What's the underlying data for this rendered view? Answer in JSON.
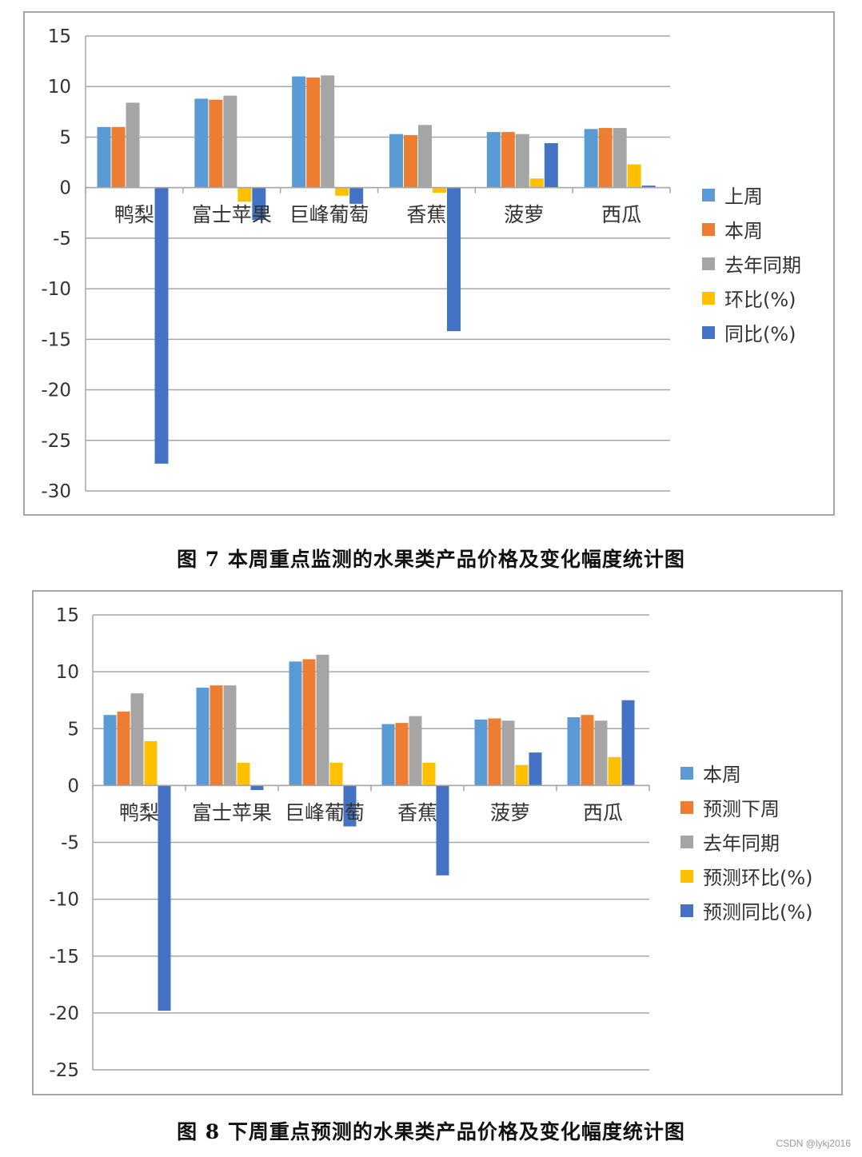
{
  "chart_data": [
    {
      "type": "bar",
      "title": "",
      "categories": [
        "鸭梨",
        "富士苹果",
        "巨峰葡萄",
        "香蕉",
        "菠萝",
        "西瓜"
      ],
      "series": [
        {
          "name": "上周",
          "color": "#5b9bd5",
          "values": [
            6.0,
            8.8,
            11.0,
            5.3,
            5.5,
            5.8
          ]
        },
        {
          "name": "本周",
          "color": "#ed7d31",
          "values": [
            6.0,
            8.7,
            10.9,
            5.2,
            5.5,
            5.9
          ]
        },
        {
          "name": "去年同期",
          "color": "#a5a5a5",
          "values": [
            8.4,
            9.1,
            11.1,
            6.2,
            5.3,
            5.9
          ]
        },
        {
          "name": "环比(%)",
          "color": "#ffc000",
          "values": [
            0.0,
            -1.4,
            -0.8,
            -0.5,
            0.9,
            2.3
          ]
        },
        {
          "name": "同比(%)",
          "color": "#4472c4",
          "values": [
            -27.3,
            -3.2,
            -1.6,
            -14.2,
            4.4,
            0.2
          ]
        }
      ],
      "ylim": [
        -30,
        15
      ],
      "yticks": [
        15,
        10,
        5,
        0,
        -5,
        -10,
        -15,
        -20,
        -25,
        -30
      ],
      "xlabel": "",
      "ylabel": "",
      "grid": true,
      "legend": "right"
    },
    {
      "type": "bar",
      "title": "",
      "categories": [
        "鸭梨",
        "富士苹果",
        "巨峰葡萄",
        "香蕉",
        "菠萝",
        "西瓜"
      ],
      "series": [
        {
          "name": "本周",
          "color": "#5b9bd5",
          "values": [
            6.2,
            8.6,
            10.9,
            5.4,
            5.8,
            6.0
          ]
        },
        {
          "name": "预测下周",
          "color": "#ed7d31",
          "values": [
            6.5,
            8.8,
            11.1,
            5.5,
            5.9,
            6.2
          ]
        },
        {
          "name": "去年同期",
          "color": "#a5a5a5",
          "values": [
            8.1,
            8.8,
            11.5,
            6.1,
            5.7,
            5.7
          ]
        },
        {
          "name": "预测环比(%)",
          "color": "#ffc000",
          "values": [
            3.9,
            2.0,
            2.0,
            2.0,
            1.8,
            2.5
          ]
        },
        {
          "name": "预测同比(%)",
          "color": "#4472c4",
          "values": [
            -19.8,
            -0.4,
            -3.6,
            -7.9,
            2.9,
            7.5
          ]
        }
      ],
      "ylim": [
        -25,
        15
      ],
      "yticks": [
        15,
        10,
        5,
        0,
        -5,
        -10,
        -15,
        -20,
        -25
      ],
      "xlabel": "",
      "ylabel": "",
      "grid": true,
      "legend": "right"
    }
  ],
  "captions": {
    "fig7": "图 7  本周重点监测的水果类产品价格及变化幅度统计图",
    "fig8": "图 8  下周重点预测的水果类产品价格及变化幅度统计图"
  },
  "watermark": "CSDN @lykj2016"
}
